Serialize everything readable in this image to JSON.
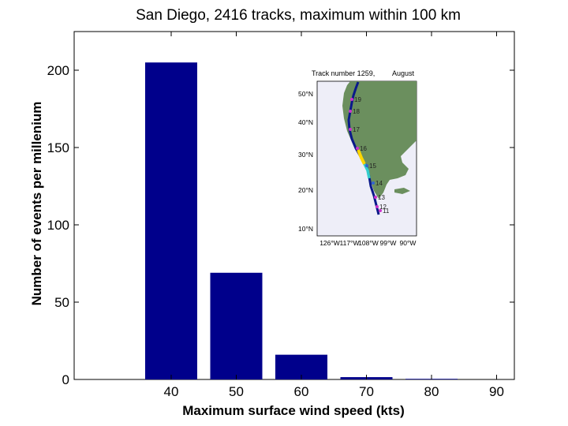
{
  "chart_data": [
    {
      "type": "bar",
      "title": "San Diego, 2416 tracks, maximum within 100 km",
      "xlabel": "Maximum surface wind speed (kts)",
      "ylabel": "Number of events per millenium",
      "categories": [
        "40",
        "50",
        "60",
        "70",
        "80",
        "90"
      ],
      "values": [
        205,
        69,
        16,
        1.5,
        0.4,
        0
      ],
      "y_ticks": [
        "0",
        "50",
        "100",
        "150",
        "200"
      ],
      "ylim": [
        0,
        225
      ],
      "bar_color": "#00008B",
      "grid": false
    },
    {
      "type": "map",
      "title": "Track number 1259,",
      "title_month": "August",
      "lat_ticks": [
        "10°N",
        "20°N",
        "30°N",
        "40°N",
        "50°N"
      ],
      "lon_ticks": [
        "126°W",
        "117°W",
        "108°W",
        "99°W",
        "90°W"
      ],
      "track_day_labels": [
        "19",
        "18",
        "17",
        "16",
        "15",
        "14",
        "13",
        "12",
        "11"
      ],
      "land_color": "#6B8F5E",
      "ocean_color": "#EEEEF8"
    }
  ]
}
